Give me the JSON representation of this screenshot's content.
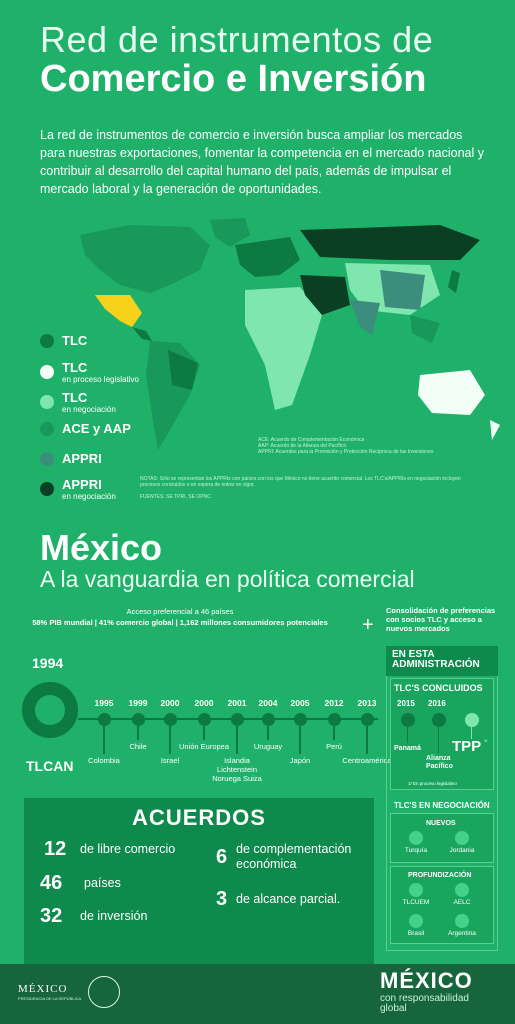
{
  "header": {
    "title_line1": "Red de instrumentos de",
    "title_line2": "Comercio e Inversión",
    "intro": "La red de instrumentos de comercio e inversión busca ampliar los mercados para nuestras exportaciones, fomentar la competencia en el mercado nacional y contribuir al desarrollo del capital humano del país, además de impulsar el mercado laboral y la generación de oportunidades."
  },
  "legend": [
    {
      "label": "TLC",
      "sub": "",
      "color": "#0e7a43"
    },
    {
      "label": "TLC",
      "sub": "en proceso legislativo",
      "color": "#f2fff6"
    },
    {
      "label": "TLC",
      "sub": "en negociación",
      "color": "#7fe6ad"
    },
    {
      "label": "ACE y AAP",
      "sub": "",
      "color": "#18985a"
    },
    {
      "label": "APPRI",
      "sub": "",
      "color": "#3b8e7e"
    },
    {
      "label": "APPRI",
      "sub": "en negociación",
      "color": "#0b3f24"
    }
  ],
  "map_notes": {
    "line1": "ACE: Acuerdo de Complementación Económica",
    "line2": "AAP: Acuerdo de la Alianza del Pacífico",
    "line3": "APPRI: Acuerdos para la Promoción y Protección Recíproca de las Inversiones",
    "notas": "NOTAS: Sólo se representan los APPRIs con países con los que México no tiene acuerdo comercial. Los TLC's/APPRIs en negociación incluyen procesos concluidos o en espera de entrar en vigor.",
    "fuentes": "FUENTES: SE TPRI, SE OPNC"
  },
  "mexico": {
    "title": "México",
    "subtitle": "A la vanguardia en política comercial",
    "pref_line1": "Acceso preferencial a 46 países",
    "pref_line2": "58% PIB mundial | 41% comercio global | 1,162 millones consumidores potenciales",
    "plus": "+",
    "consolidacion": "Consolidación de preferencias con socios TLC y acceso a nuevos mercados"
  },
  "timeline": {
    "start_year": "1994",
    "start_label": "TLCAN",
    "items": [
      {
        "year": "1995",
        "label": "Colombia"
      },
      {
        "year": "1999",
        "label": "Chile"
      },
      {
        "year": "2000",
        "label": "Israel"
      },
      {
        "year": "2000",
        "label": "Unión Europea"
      },
      {
        "year": "2001",
        "label": "Islandia Lichtenstein Noruega Suiza"
      },
      {
        "year": "2004",
        "label": "Uruguay"
      },
      {
        "year": "2005",
        "label": "Japón"
      },
      {
        "year": "2012",
        "label": "Perú"
      },
      {
        "year": "2013",
        "label": "Centroamérica"
      }
    ]
  },
  "acuerdos": {
    "title": "ACUERDOS",
    "items": [
      {
        "num": "12",
        "text": "de libre comercio"
      },
      {
        "num": "46",
        "text": "países"
      },
      {
        "num": "32",
        "text": "de inversión"
      },
      {
        "num": "6",
        "text": "de complementación económica"
      },
      {
        "num": "3",
        "text": "de alcance parcial."
      }
    ]
  },
  "side": {
    "admin": "EN ESTA ADMINISTRACIÓN",
    "concluidos_title": "TLC'S CONCLUIDOS",
    "c_year1": "2015",
    "c_year2": "2016",
    "c_label1": "Panamá",
    "c_label2": "Alianza Pacífico",
    "tpp": "TPP",
    "tpp_note": "1/",
    "footnote": "1/ En proceso legislativo",
    "negociacion_title": "TLC'S EN NEGOCIACIÓN",
    "nuevos_title": "NUEVOS",
    "nuevos": [
      "Turquía",
      "Jordania"
    ],
    "prof_title": "PROFUNDIZACIÓN",
    "prof": [
      "TLCUEM",
      "AELC",
      "Brasil",
      "Argentina"
    ]
  },
  "footer": {
    "mexico": "MÉXICO",
    "presidencia": "PRESIDENCIA DE LA REPÚBLICA",
    "big": "MÉXICO",
    "tag1": "con responsabilidad",
    "tag2": "global"
  }
}
